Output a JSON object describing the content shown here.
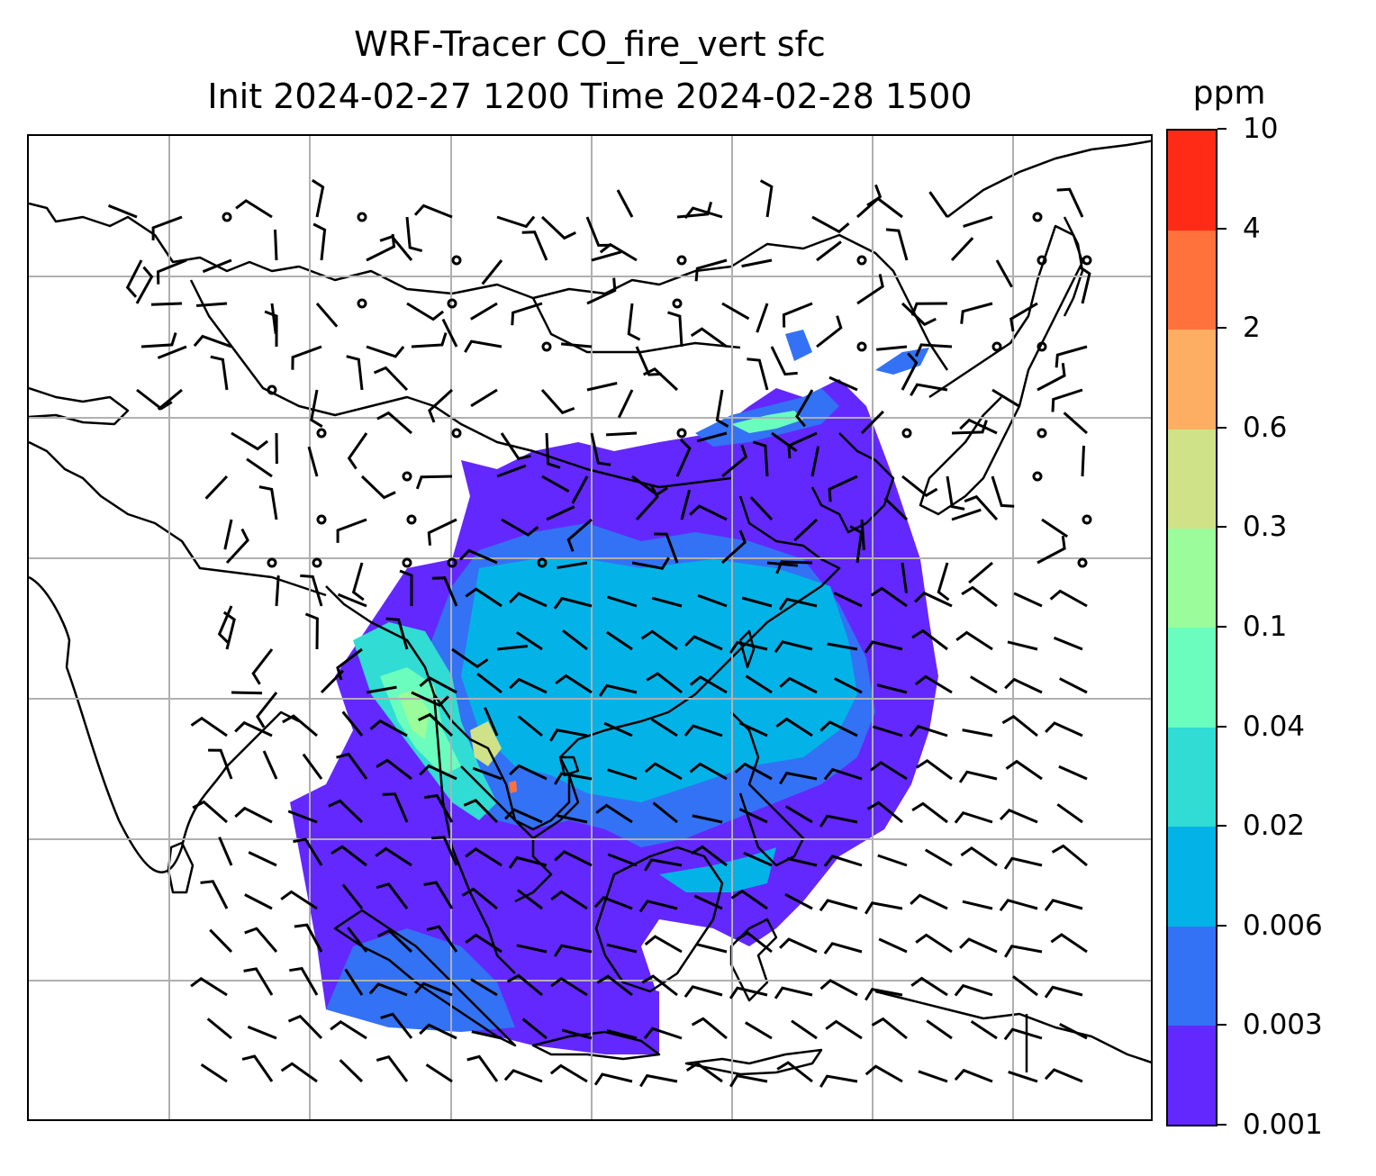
{
  "title": {
    "line1": "WRF-Tracer CO_fire_vert sfc",
    "line2": "Init 2024-02-27 1200 Time 2024-02-28 1500"
  },
  "colorbar": {
    "unit": "ppm",
    "levels": [
      "0.001",
      "0.003",
      "0.006",
      "0.02",
      "0.04",
      "0.1",
      "0.3",
      "0.6",
      "2",
      "4",
      "10"
    ],
    "colors": [
      "#6328fd",
      "#3372f5",
      "#03b3e8",
      "#30dcd3",
      "#6afdbe",
      "#9afc9a",
      "#cfe287",
      "#feae62",
      "#ff723b",
      "#ff2b17"
    ]
  },
  "map": {
    "land_outline_color": "#000000",
    "gridline_color": "#b0b0b0",
    "barb_color": "#000000"
  }
}
